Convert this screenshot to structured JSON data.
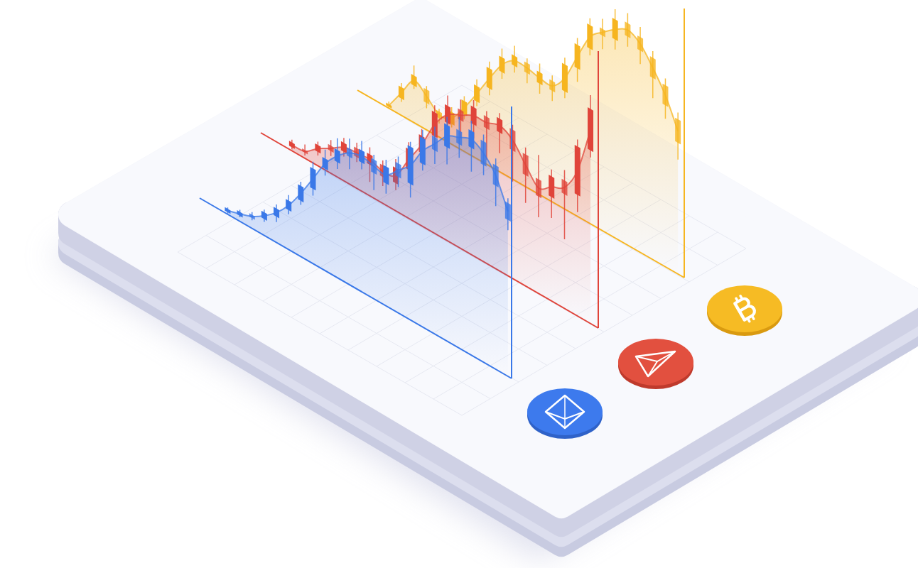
{
  "chart_data": [
    {
      "type": "candlestick",
      "color": "#f6b520",
      "tick_labels": false,
      "x": [
        0,
        1,
        2,
        3,
        4,
        5,
        6,
        7,
        8,
        9,
        10,
        11,
        12,
        13,
        14,
        15,
        16,
        17,
        18,
        19,
        20,
        21,
        22,
        23
      ],
      "xlim": [
        -2.5,
        23.5
      ],
      "ylim": [
        0,
        400
      ],
      "open": [
        2,
        25,
        55,
        60,
        38,
        30,
        55,
        85,
        115,
        150,
        170,
        185,
        165,
        180,
        175,
        220,
        260,
        300,
        295,
        330,
        320,
        300,
        270,
        230
      ],
      "high": [
        10,
        48,
        85,
        65,
        42,
        55,
        82,
        118,
        155,
        185,
        200,
        192,
        195,
        188,
        225,
        265,
        305,
        315,
        340,
        345,
        335,
        310,
        280,
        240
      ],
      "low": [
        0,
        20,
        50,
        32,
        20,
        25,
        48,
        78,
        105,
        140,
        160,
        155,
        150,
        150,
        165,
        200,
        250,
        270,
        280,
        295,
        280,
        240,
        220,
        170
      ],
      "close": [
        6,
        42,
        70,
        40,
        28,
        48,
        75,
        108,
        145,
        172,
        185,
        170,
        182,
        165,
        215,
        255,
        295,
        290,
        325,
        310,
        300,
        270,
        240,
        195
      ]
    },
    {
      "type": "candlestick",
      "color": "#e0443a",
      "tick_labels": false,
      "x": [
        0,
        1,
        2,
        3,
        4,
        5,
        6,
        7,
        8,
        9,
        10,
        11,
        12,
        13,
        14,
        15,
        16,
        17,
        18,
        19,
        20,
        21,
        22,
        23
      ],
      "xlim": [
        -2.4,
        23.6
      ],
      "ylim": [
        0,
        400
      ],
      "open": [
        5,
        12,
        20,
        40,
        42,
        58,
        45,
        55,
        40,
        70,
        105,
        140,
        170,
        200,
        190,
        212,
        200,
        215,
        190,
        165,
        150,
        185,
        175,
        250
      ],
      "high": [
        16,
        20,
        35,
        48,
        62,
        66,
        70,
        62,
        75,
        110,
        140,
        185,
        210,
        215,
        225,
        220,
        228,
        222,
        200,
        200,
        190,
        200,
        255,
        330
      ],
      "low": [
        2,
        4,
        15,
        25,
        35,
        38,
        20,
        25,
        30,
        60,
        90,
        120,
        150,
        160,
        170,
        150,
        170,
        140,
        120,
        110,
        120,
        100,
        150,
        240
      ],
      "close": [
        12,
        8,
        30,
        32,
        55,
        45,
        60,
        38,
        62,
        100,
        130,
        175,
        195,
        185,
        215,
        195,
        220,
        185,
        160,
        140,
        180,
        165,
        245,
        310
      ]
    },
    {
      "type": "candlestick",
      "color": "#3a78e8",
      "tick_labels": false,
      "x": [
        0,
        1,
        2,
        3,
        4,
        5,
        6,
        7,
        8,
        9,
        10,
        11,
        12,
        13,
        14,
        15,
        16,
        17,
        18,
        19,
        20,
        21,
        22,
        23
      ],
      "xlim": [
        -2.3,
        23.3
      ],
      "ylim": [
        0,
        400
      ],
      "open": [
        3,
        8,
        20,
        24,
        38,
        58,
        82,
        110,
        150,
        170,
        200,
        190,
        205,
        180,
        220,
        200,
        240,
        290,
        285,
        320,
        305,
        325,
        300,
        255
      ],
      "high": [
        10,
        17,
        24,
        38,
        56,
        80,
        110,
        150,
        178,
        205,
        215,
        222,
        212,
        215,
        230,
        262,
        290,
        305,
        330,
        340,
        345,
        335,
        310,
        262
      ],
      "low": [
        1,
        6,
        12,
        20,
        30,
        52,
        76,
        100,
        140,
        160,
        170,
        180,
        160,
        165,
        185,
        180,
        230,
        250,
        260,
        280,
        270,
        275,
        240,
        215
      ],
      "close": [
        8,
        14,
        15,
        34,
        50,
        72,
        104,
        140,
        165,
        188,
        188,
        208,
        185,
        205,
        200,
        255,
        278,
        270,
        318,
        300,
        330,
        290,
        270,
        230
      ]
    }
  ]
}
